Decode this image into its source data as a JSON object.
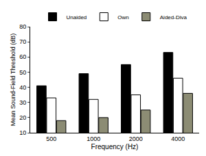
{
  "chart_data": {
    "type": "bar",
    "x_label": "Frequency (Hz)",
    "y_label": "Mean Sound-Field Threshold (dB)",
    "categories": [
      "500",
      "1000",
      "2000",
      "4000"
    ],
    "series": [
      {
        "name": "Unaided",
        "color": "#000000",
        "values": [
          41,
          49,
          55,
          63
        ]
      },
      {
        "name": "Own",
        "color": "#ffffff",
        "values": [
          33,
          32,
          35,
          46
        ]
      },
      {
        "name": "Aided-Diva",
        "color": "#8c8c74",
        "values": [
          18,
          20,
          25,
          36
        ]
      }
    ],
    "ylim": [
      10,
      80
    ],
    "yticks": [
      10,
      20,
      30,
      40,
      50,
      60,
      70,
      80
    ],
    "grid": false,
    "legend": "top"
  }
}
